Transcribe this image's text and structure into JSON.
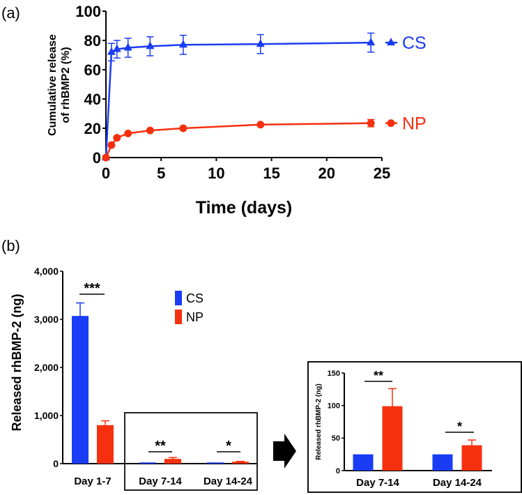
{
  "chart_data": [
    {
      "panel_label": "(a)",
      "type": "line",
      "xlabel": "Time (days)",
      "ylabel_line1": "Cumulative release",
      "ylabel_line2": "of rhBMP2 (%)",
      "xlim": [
        0,
        25
      ],
      "ylim": [
        0,
        100
      ],
      "xticks": [
        "0",
        "5",
        "10",
        "15",
        "20",
        "25"
      ],
      "yticks": [
        "0",
        "20",
        "40",
        "60",
        "80",
        "100"
      ],
      "legend": "right",
      "series": [
        {
          "name": "CS",
          "color": "#1a3cf5",
          "marker": "triangle",
          "x": [
            0,
            0.5,
            1,
            2,
            4,
            7,
            14,
            24
          ],
          "y": [
            0,
            72,
            74,
            75,
            76,
            77,
            77.5,
            78.5
          ],
          "err": [
            0,
            6,
            6,
            6.5,
            6.5,
            6.5,
            6.5,
            6.5
          ]
        },
        {
          "name": "NP",
          "color": "#f5300f",
          "marker": "circle",
          "x": [
            0,
            0.5,
            1,
            2,
            4,
            7,
            14,
            24
          ],
          "y": [
            0,
            8.5,
            13.5,
            16.5,
            18.5,
            20,
            22.5,
            23.5
          ],
          "err": [
            0,
            0.5,
            1,
            1,
            1,
            1,
            1,
            2.5
          ]
        }
      ]
    },
    {
      "panel_label": "(b)",
      "type": "bar",
      "ylabel": "Released rhBMP-2 (ng)",
      "ylim": [
        0,
        4000
      ],
      "yticks": [
        "0",
        "1,000",
        "2,000",
        "3,000",
        "4,000"
      ],
      "categories": [
        "Day 1-7",
        "Day 7-14",
        "Day 14-24"
      ],
      "series": [
        {
          "name": "CS",
          "color": "#1a3cf5",
          "values": [
            3070,
            25,
            25
          ],
          "err": [
            270,
            1,
            1
          ]
        },
        {
          "name": "NP",
          "color": "#f5300f",
          "values": [
            800,
            99,
            39
          ],
          "err": [
            90,
            27,
            8
          ]
        }
      ],
      "significance": [
        "***",
        "**",
        "*"
      ],
      "legend": "top-center"
    },
    {
      "type": "bar",
      "inset_of": "(b)",
      "ylabel": "Released rhBMP-2 (ng)",
      "ylim": [
        0,
        150
      ],
      "yticks": [
        "0",
        "50",
        "100",
        "150"
      ],
      "categories": [
        "Day 7-14",
        "Day 14-24"
      ],
      "series": [
        {
          "name": "CS",
          "color": "#1a3cf5",
          "values": [
            25,
            25
          ],
          "err": [
            1,
            1
          ]
        },
        {
          "name": "NP",
          "color": "#f5300f",
          "values": [
            99,
            39
          ],
          "err": [
            27,
            8
          ]
        }
      ],
      "significance": [
        "**",
        "*"
      ]
    }
  ]
}
